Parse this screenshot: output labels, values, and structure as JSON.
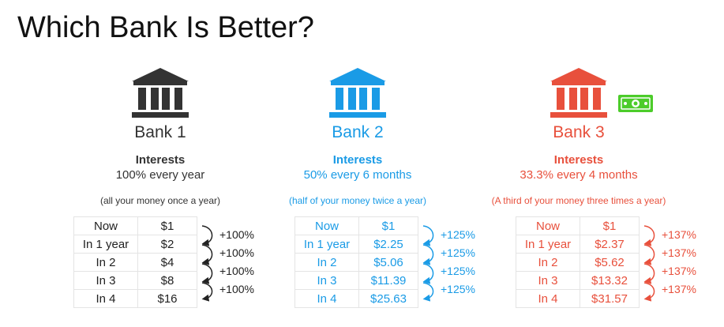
{
  "title": "Which Bank Is Better?",
  "banks": [
    {
      "name": "Bank 1",
      "color": "#333333",
      "icon": "bank-building-icon",
      "interest_label": "Interests",
      "interest_rate": "100% every year",
      "interest_note": "(all your money once a year)",
      "rows": [
        {
          "period": "Now",
          "amount": "$1"
        },
        {
          "period": "In 1 year",
          "amount": "$2"
        },
        {
          "period": "In 2",
          "amount": "$4"
        },
        {
          "period": "In 3",
          "amount": "$8"
        },
        {
          "period": "In 4",
          "amount": "$16"
        }
      ],
      "growth_labels": [
        "+100%",
        "+100%",
        "+100%",
        "+100%"
      ]
    },
    {
      "name": "Bank 2",
      "color": "#1a9be6",
      "icon": "bank-building-icon",
      "interest_label": "Interests",
      "interest_rate": "50% every 6 months",
      "interest_note": "(half of your money twice a year)",
      "rows": [
        {
          "period": "Now",
          "amount": "$1"
        },
        {
          "period": "In 1 year",
          "amount": "$2.25"
        },
        {
          "period": "In 2",
          "amount": "$5.06"
        },
        {
          "period": "In 3",
          "amount": "$11.39"
        },
        {
          "period": "In 4",
          "amount": "$25.63"
        }
      ],
      "growth_labels": [
        "+125%",
        "+125%",
        "+125%",
        "+125%"
      ]
    },
    {
      "name": "Bank 3",
      "color": "#e8503c",
      "icon": "bank-building-icon",
      "interest_label": "Interests",
      "interest_rate": "33.3% every 4 months",
      "interest_note": "(A third of your money three times a year)",
      "rows": [
        {
          "period": "Now",
          "amount": "$1"
        },
        {
          "period": "In 1 year",
          "amount": "$2.37"
        },
        {
          "period": "In 2",
          "amount": "$5.62"
        },
        {
          "period": "In 3",
          "amount": "$13.32"
        },
        {
          "period": "In 4",
          "amount": "$31.57"
        }
      ],
      "growth_labels": [
        "+137%",
        "+137%",
        "+137%",
        "+137%"
      ]
    }
  ],
  "decorations": {
    "money_icon": "dollar-bill-icon",
    "money_color": "#4ccc2a"
  }
}
